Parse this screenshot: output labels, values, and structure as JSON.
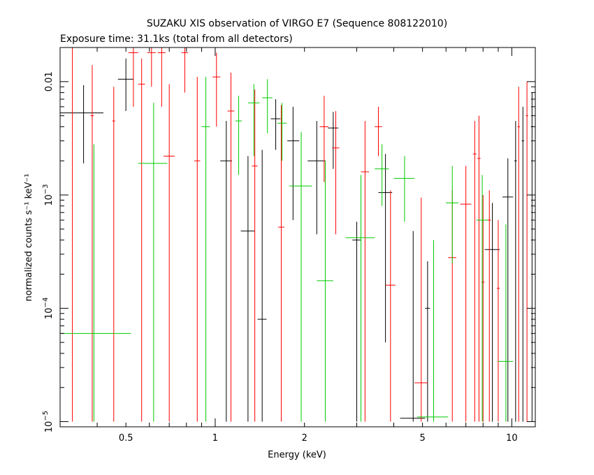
{
  "chart_data": {
    "type": "scatter",
    "title": "SUZAKU XIS observation of VIRGO E7 (Sequence 808122010)",
    "subtitle": "Exposure time: 31.1ks (total from all detectors)",
    "xlabel": "Energy (keV)",
    "ylabel": "normalized counts s⁻¹ keV⁻¹",
    "xscale": "log",
    "yscale": "log",
    "xlim": [
      0.3,
      12
    ],
    "ylim": [
      9e-06,
      0.02
    ],
    "grid": false,
    "x_ticks": [
      {
        "label": "0.5",
        "value": 0.5
      },
      {
        "label": "1",
        "value": 1
      },
      {
        "label": "2",
        "value": 2
      },
      {
        "label": "5",
        "value": 5
      },
      {
        "label": "10",
        "value": 10
      }
    ],
    "y_ticks": [
      {
        "value": 1e-05,
        "base": "10",
        "exp": "−5"
      },
      {
        "value": 0.0001,
        "base": "10",
        "exp": "−4"
      },
      {
        "value": 0.001,
        "base": "10",
        "exp": "−3"
      },
      {
        "value": 0.01,
        "label": "0.01"
      }
    ],
    "series": [
      {
        "color": "#000000",
        "points": [
          {
            "x": 0.36,
            "xlo": 0.3,
            "xhi": 0.42,
            "y": 0.0053,
            "ylo": 0.0019,
            "yhi": 0.0093
          },
          {
            "x": 0.5,
            "xlo": 0.47,
            "xhi": 0.53,
            "y": 0.0105,
            "ylo": 0.0055,
            "yhi": 0.016
          },
          {
            "x": 1.09,
            "xlo": 1.04,
            "xhi": 1.14,
            "y": 0.002,
            "ylo": 1e-05,
            "yhi": 0.0045
          },
          {
            "x": 1.29,
            "xlo": 1.22,
            "xhi": 1.36,
            "y": 0.00048,
            "ylo": 1e-05,
            "yhi": 0.0022
          },
          {
            "x": 1.44,
            "xlo": 1.39,
            "xhi": 1.49,
            "y": 8e-05,
            "ylo": 1e-05,
            "yhi": 0.0025
          },
          {
            "x": 1.6,
            "xlo": 1.54,
            "xhi": 1.66,
            "y": 0.0047,
            "ylo": 0.0025,
            "yhi": 0.007
          },
          {
            "x": 1.83,
            "xlo": 1.75,
            "xhi": 1.92,
            "y": 0.003,
            "ylo": 0.0006,
            "yhi": 0.006
          },
          {
            "x": 2.2,
            "xlo": 2.05,
            "xhi": 2.35,
            "y": 0.002,
            "ylo": 0.00045,
            "yhi": 0.0045
          },
          {
            "x": 2.5,
            "xlo": 2.4,
            "xhi": 2.6,
            "y": 0.0039,
            "ylo": 0.0017,
            "yhi": 0.0054
          },
          {
            "x": 3.0,
            "xlo": 2.9,
            "xhi": 3.1,
            "y": 0.0004,
            "ylo": 1e-05,
            "yhi": 0.00058
          },
          {
            "x": 3.75,
            "xlo": 3.55,
            "xhi": 3.95,
            "y": 0.00105,
            "ylo": 5e-05,
            "yhi": 0.0023
          },
          {
            "x": 4.65,
            "xlo": 4.2,
            "xhi": 5.1,
            "y": 1.07e-05,
            "ylo": 1e-05,
            "yhi": 0.00048
          },
          {
            "x": 5.2,
            "xlo": 5.1,
            "xhi": 5.3,
            "y": 0.0001,
            "ylo": 1e-05,
            "yhi": 0.00026
          },
          {
            "x": 8.6,
            "xlo": 8.1,
            "xhi": 9.1,
            "y": 0.00033,
            "ylo": 1e-05,
            "yhi": 0.00085
          },
          {
            "x": 9.7,
            "xlo": 9.3,
            "xhi": 10.1,
            "y": 0.00096,
            "ylo": 1e-05,
            "yhi": 0.0021
          },
          {
            "x": 10.3,
            "xlo": 10.2,
            "xhi": 10.4,
            "y": 0.002,
            "ylo": 1e-05,
            "yhi": 0.0045
          },
          {
            "x": 10.9,
            "xlo": 10.8,
            "xhi": 11.0,
            "y": 0.003,
            "ylo": 1e-05,
            "yhi": 0.006
          },
          {
            "x": 11.7,
            "xlo": 11.6,
            "xhi": 11.8,
            "y": 0.004,
            "ylo": 1e-05,
            "yhi": 0.008
          }
        ]
      },
      {
        "color": "#ff0000",
        "points": [
          {
            "x": 0.33,
            "xlo": 0.3,
            "xhi": 0.36,
            "y": 0.02,
            "ylo": 1e-05,
            "yhi": 0.02
          },
          {
            "x": 0.385,
            "xlo": 0.38,
            "xhi": 0.39,
            "y": 0.005,
            "ylo": 1e-05,
            "yhi": 0.014
          },
          {
            "x": 0.455,
            "xlo": 0.45,
            "xhi": 0.46,
            "y": 0.0045,
            "ylo": 1e-05,
            "yhi": 0.009
          },
          {
            "x": 0.53,
            "xlo": 0.51,
            "xhi": 0.55,
            "y": 0.018,
            "ylo": 0.006,
            "yhi": 0.02
          },
          {
            "x": 0.565,
            "xlo": 0.55,
            "xhi": 0.58,
            "y": 0.0095,
            "ylo": 1e-05,
            "yhi": 0.016
          },
          {
            "x": 0.61,
            "xlo": 0.59,
            "xhi": 0.63,
            "y": 0.018,
            "ylo": 0.009,
            "yhi": 0.02
          },
          {
            "x": 0.66,
            "xlo": 0.64,
            "xhi": 0.68,
            "y": 0.018,
            "ylo": 0.006,
            "yhi": 0.02
          },
          {
            "x": 0.7,
            "xlo": 0.67,
            "xhi": 0.73,
            "y": 0.0022,
            "ylo": 1e-05,
            "yhi": 0.0095
          },
          {
            "x": 0.79,
            "xlo": 0.77,
            "xhi": 0.81,
            "y": 0.018,
            "ylo": 0.008,
            "yhi": 0.02
          },
          {
            "x": 0.87,
            "xlo": 0.85,
            "xhi": 0.89,
            "y": 0.002,
            "ylo": 1e-05,
            "yhi": 0.011
          },
          {
            "x": 1.01,
            "xlo": 0.98,
            "xhi": 1.04,
            "y": 0.011,
            "ylo": 0.004,
            "yhi": 0.018
          },
          {
            "x": 1.13,
            "xlo": 1.1,
            "xhi": 1.16,
            "y": 0.0055,
            "ylo": 1e-05,
            "yhi": 0.012
          },
          {
            "x": 1.36,
            "xlo": 1.33,
            "xhi": 1.39,
            "y": 0.0018,
            "ylo": 1e-05,
            "yhi": 0.0085
          },
          {
            "x": 1.67,
            "xlo": 1.63,
            "xhi": 1.71,
            "y": 0.00052,
            "ylo": 1e-05,
            "yhi": 0.0062
          },
          {
            "x": 2.33,
            "xlo": 2.25,
            "xhi": 2.41,
            "y": 0.004,
            "ylo": 0.0013,
            "yhi": 0.0075
          },
          {
            "x": 2.55,
            "xlo": 2.48,
            "xhi": 2.62,
            "y": 0.0026,
            "ylo": 0.00045,
            "yhi": 0.0055
          },
          {
            "x": 3.2,
            "xlo": 3.1,
            "xhi": 3.3,
            "y": 0.0016,
            "ylo": 1e-05,
            "yhi": 0.0045
          },
          {
            "x": 3.55,
            "xlo": 3.45,
            "xhi": 3.65,
            "y": 0.004,
            "ylo": 0.0022,
            "yhi": 0.006
          },
          {
            "x": 3.9,
            "xlo": 3.75,
            "xhi": 4.05,
            "y": 0.00016,
            "ylo": 1e-05,
            "yhi": 0.0011
          },
          {
            "x": 4.95,
            "xlo": 4.7,
            "xhi": 5.2,
            "y": 2.2e-05,
            "ylo": 1e-05,
            "yhi": 0.00095
          },
          {
            "x": 6.3,
            "xlo": 6.1,
            "xhi": 6.5,
            "y": 0.00028,
            "ylo": 1e-05,
            "yhi": 0.0011
          },
          {
            "x": 7.0,
            "xlo": 6.7,
            "xhi": 7.3,
            "y": 0.00083,
            "ylo": 1e-05,
            "yhi": 0.0018
          },
          {
            "x": 7.5,
            "xlo": 7.4,
            "xhi": 7.6,
            "y": 0.0023,
            "ylo": 1e-05,
            "yhi": 0.0045
          },
          {
            "x": 7.75,
            "xlo": 7.65,
            "xhi": 7.85,
            "y": 0.0021,
            "ylo": 1e-05,
            "yhi": 0.005
          },
          {
            "x": 8.0,
            "xlo": 7.9,
            "xhi": 8.1,
            "y": 0.00017,
            "ylo": 1e-05,
            "yhi": 0.001
          },
          {
            "x": 8.4,
            "xlo": 8.3,
            "xhi": 8.5,
            "y": 0.0006,
            "ylo": 1e-05,
            "yhi": 0.0011
          },
          {
            "x": 9.0,
            "xlo": 8.9,
            "xhi": 9.1,
            "y": 0.00015,
            "ylo": 1e-05,
            "yhi": 0.0006
          },
          {
            "x": 10.55,
            "xlo": 10.45,
            "xhi": 10.65,
            "y": 0.004,
            "ylo": 1e-05,
            "yhi": 0.009
          },
          {
            "x": 11.25,
            "xlo": 11.15,
            "xhi": 11.35,
            "y": 0.005,
            "ylo": 1e-05,
            "yhi": 0.01
          }
        ]
      },
      {
        "color": "#00cc00",
        "points": [
          {
            "x": 0.39,
            "xlo": 0.3,
            "xhi": 0.52,
            "y": 6e-05,
            "ylo": 1e-05,
            "yhi": 0.0028
          },
          {
            "x": 0.62,
            "xlo": 0.55,
            "xhi": 0.69,
            "y": 0.0019,
            "ylo": 1e-05,
            "yhi": 0.0065
          },
          {
            "x": 0.93,
            "xlo": 0.9,
            "xhi": 0.96,
            "y": 0.004,
            "ylo": 1e-05,
            "yhi": 0.011
          },
          {
            "x": 1.2,
            "xlo": 1.17,
            "xhi": 1.23,
            "y": 0.0045,
            "ylo": 0.0015,
            "yhi": 0.0075
          },
          {
            "x": 1.35,
            "xlo": 1.29,
            "xhi": 1.41,
            "y": 0.0065,
            "ylo": 0.0022,
            "yhi": 0.0095
          },
          {
            "x": 1.5,
            "xlo": 1.44,
            "xhi": 1.56,
            "y": 0.0072,
            "ylo": 0.0035,
            "yhi": 0.0105
          },
          {
            "x": 1.68,
            "xlo": 1.62,
            "xhi": 1.74,
            "y": 0.0043,
            "ylo": 0.002,
            "yhi": 0.0065
          },
          {
            "x": 1.95,
            "xlo": 1.78,
            "xhi": 2.12,
            "y": 0.0012,
            "ylo": 1e-05,
            "yhi": 0.0036
          },
          {
            "x": 2.35,
            "xlo": 2.2,
            "xhi": 2.5,
            "y": 0.000175,
            "ylo": 1e-05,
            "yhi": 0.002
          },
          {
            "x": 3.1,
            "xlo": 2.75,
            "xhi": 3.45,
            "y": 0.00042,
            "ylo": 1e-05,
            "yhi": 0.0015
          },
          {
            "x": 3.65,
            "xlo": 3.45,
            "xhi": 3.85,
            "y": 0.0017,
            "ylo": 0.0008,
            "yhi": 0.0028
          },
          {
            "x": 4.35,
            "xlo": 4.0,
            "xhi": 4.7,
            "y": 0.0014,
            "ylo": 0.00058,
            "yhi": 0.0022
          },
          {
            "x": 5.45,
            "xlo": 4.8,
            "xhi": 6.1,
            "y": 1.1e-05,
            "ylo": 1e-05,
            "yhi": 0.0004
          },
          {
            "x": 6.3,
            "xlo": 6.0,
            "xhi": 6.6,
            "y": 0.00085,
            "ylo": 0.00025,
            "yhi": 0.0018
          },
          {
            "x": 7.95,
            "xlo": 7.6,
            "xhi": 8.3,
            "y": 0.0006,
            "ylo": 1e-05,
            "yhi": 0.0015
          },
          {
            "x": 9.55,
            "xlo": 9.0,
            "xhi": 10.1,
            "y": 3.4e-05,
            "ylo": 1e-05,
            "yhi": 0.00055
          }
        ]
      }
    ]
  }
}
